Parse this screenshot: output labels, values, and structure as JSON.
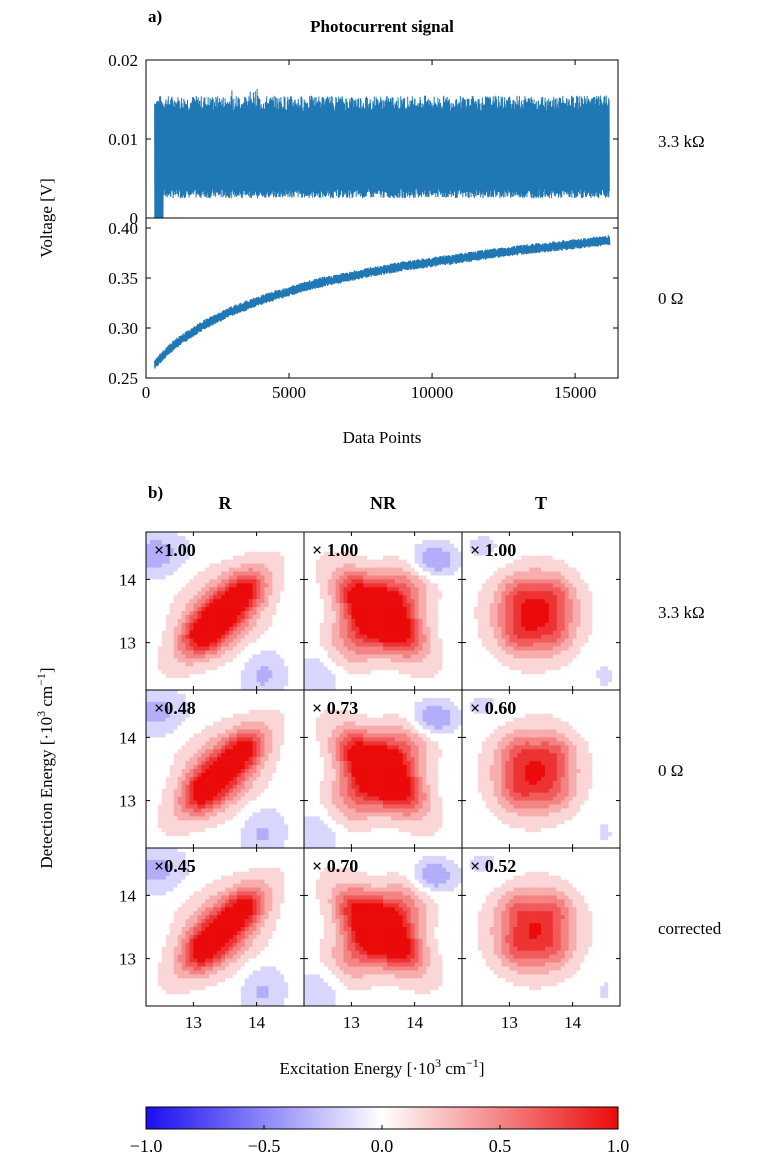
{
  "panel_a": {
    "label": "a)",
    "title": "Photocurrent signal",
    "ylabel": "Voltage [V]",
    "xlabel": "Data Points"
  },
  "panel_b": {
    "label": "b)",
    "xlabel_main": "Excitation Energy [·10",
    "xlabel_sup": "3",
    "xlabel_end": " cm",
    "xlabel_sup2": "−1",
    "xlabel_close": "]",
    "ylabel_main": "Detection Energy [·10",
    "ylabel_sup": "3",
    "ylabel_end": " cm",
    "ylabel_sup2": "−1",
    "ylabel_close": "]"
  },
  "chart_data": [
    {
      "type": "line",
      "title": "Photocurrent signal",
      "row_label": "3.3 kΩ",
      "xlabel": "Data Points",
      "ylabel": "Voltage [V]",
      "xlim": [
        0,
        16500
      ],
      "ylim": [
        0,
        0.02
      ],
      "xticks": [
        0,
        5000,
        10000,
        15000
      ],
      "yticks": [
        0,
        0.01,
        0.02
      ],
      "ytick_labels": [
        "0",
        "0.01",
        "0.02"
      ],
      "series": [
        {
          "x_start": 300,
          "x_end": 16200,
          "upper_envelope": 0.015,
          "lower_envelope": 0.003,
          "mean": 0.007,
          "color": "#1f77b4"
        }
      ]
    },
    {
      "type": "line",
      "row_label": "0 Ω",
      "xlim": [
        0,
        16500
      ],
      "ylim": [
        0.25,
        0.41
      ],
      "xticks": [
        0,
        5000,
        10000,
        15000
      ],
      "xtick_labels": [
        "0",
        "5000",
        "10000",
        "15000"
      ],
      "yticks": [
        0.25,
        0.3,
        0.35,
        0.4
      ],
      "ytick_labels": [
        "0.25",
        "0.30",
        "0.35",
        "0.40"
      ],
      "series": [
        {
          "x": [
            300,
            1000,
            2000,
            3000,
            4000,
            5000,
            6000,
            7000,
            8000,
            9000,
            10000,
            11000,
            12000,
            13000,
            14000,
            15000,
            16200
          ],
          "y": [
            0.263,
            0.283,
            0.302,
            0.316,
            0.327,
            0.336,
            0.344,
            0.35,
            0.356,
            0.361,
            0.365,
            0.369,
            0.373,
            0.377,
            0.38,
            0.383,
            0.387
          ],
          "oscillation_amplitude": 0.006,
          "color": "#1f77b4"
        }
      ]
    },
    {
      "type": "heatmap",
      "columns": [
        "R",
        "NR",
        "T"
      ],
      "rows": [
        "3.3 kΩ",
        "0 Ω",
        "corrected"
      ],
      "xticks": [
        13,
        14
      ],
      "yticks": [
        13,
        14
      ],
      "axis_range": [
        12.25,
        14.75
      ],
      "scale_labels": [
        [
          "×1.00",
          "× 1.00",
          "× 1.00"
        ],
        [
          "×0.48",
          "× 0.73",
          "× 0.60"
        ],
        [
          "×0.45",
          "× 0.70",
          "× 0.52"
        ]
      ],
      "colorbar": {
        "range": [
          -1.0,
          1.0
        ],
        "ticks": [
          "−1.0",
          "−0.5",
          "0.0",
          "0.5",
          "1.0"
        ],
        "colors": [
          "#0000ff",
          "#ffffff",
          "#ff0000"
        ]
      }
    }
  ]
}
